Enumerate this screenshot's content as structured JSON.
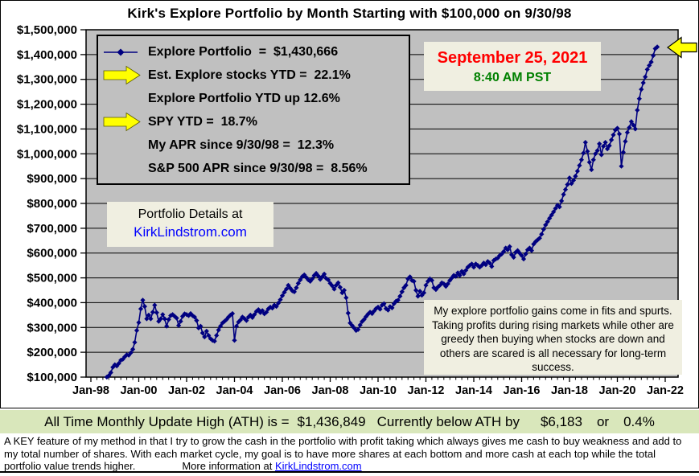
{
  "title": "Kirk's Explore Portfolio by Month Starting with $100,000 on 9/30/98",
  "colors": {
    "line": "#000080",
    "plot_bg": "#C0C0C0",
    "legend_bg": "#C0C0C0",
    "box_bg": "#F0EFE1",
    "ath_bg": "#D9E7BB",
    "date_red": "#FF0000",
    "time_green": "#008000",
    "link_blue": "#0000FF",
    "arrow_yellow": "#FFFF00"
  },
  "legend": {
    "items": [
      {
        "label": "Explore Portfolio  =  $1,430,666",
        "marker": "line-diamond",
        "arrow": false
      },
      {
        "label": "Est. Explore stocks YTD =  22.1%",
        "marker": null,
        "arrow": true
      },
      {
        "label": "Explore Portfolio YTD up 12.6%",
        "marker": null,
        "arrow": false
      },
      {
        "label": "SPY YTD =  18.7%",
        "marker": null,
        "arrow": true
      },
      {
        "label": "My APR since 9/30/98 =  12.3%",
        "marker": null,
        "arrow": false
      },
      {
        "label": "S&P 500 APR since 9/30/98 =  8.56%",
        "marker": null,
        "arrow": false
      }
    ]
  },
  "datetime_box": {
    "date": "September 25, 2021",
    "time": "8:40 AM PST"
  },
  "details_box": {
    "line1": "Portfolio Details at",
    "link": "KirkLindstrom.com"
  },
  "annotation_box": {
    "text": "My explore portfolio gains come in fits and spurts. Taking profits during rising markets while other are greedy then buying when stocks are down and others are scared is all necessary for long-term success."
  },
  "ath_bar": {
    "label": "All Time Monthly Update High (ATH) is =",
    "ath_value": "$1,436,849",
    "middle": "Currently below ATH by",
    "below_amount": "$6,183",
    "or_label": "or",
    "below_pct": "0.4%"
  },
  "footer": {
    "body": " A KEY feature of my method in that I try to grow the cash in the portfolio with profit taking which always gives me cash to buy weakness and add to my total number of shares.  With each market cycle, my goal is to have more shares at each bottom and more cash at each top while the total portfolio value trends higher.",
    "more_label": "More information at ",
    "link": "KirkLindstrom.com"
  },
  "chart_data": {
    "type": "line",
    "title": "Kirk's Explore Portfolio by Month Starting with $100,000 on 9/30/98",
    "xlabel": "",
    "ylabel": "",
    "ylim": [
      100000,
      1500000
    ],
    "y_tick_step": 100000,
    "y_tick_format": "$#,##0",
    "x_ticks": [
      "Jan-98",
      "Jan-00",
      "Jan-02",
      "Jan-04",
      "Jan-06",
      "Jan-08",
      "Jan-10",
      "Jan-12",
      "Jan-14",
      "Jan-16",
      "Jan-18",
      "Jan-20",
      "Jan-22"
    ],
    "x_axis_years": [
      1998,
      2022
    ],
    "grid": true,
    "legend_position": "top-left",
    "plot_bg": "#C0C0C0",
    "series": [
      {
        "name": "Explore Portfolio",
        "color": "#000080",
        "marker": "diamond",
        "frequency": "monthly",
        "start": "1998-09",
        "end": "2021-09",
        "final_value": 1430666,
        "values": [
          100000,
          106000,
          118000,
          140000,
          150000,
          145000,
          155000,
          168000,
          172000,
          182000,
          190000,
          188000,
          198000,
          212000,
          240000,
          288000,
          320000,
          375000,
          410000,
          385000,
          335000,
          350000,
          335000,
          362000,
          390000,
          360000,
          325000,
          335000,
          352000,
          335000,
          305000,
          332000,
          348000,
          352000,
          345000,
          338000,
          308000,
          325000,
          345000,
          355000,
          352000,
          348000,
          356000,
          348000,
          342000,
          328000,
          298000,
          305000,
          278000,
          262000,
          285000,
          268000,
          255000,
          248000,
          245000,
          268000,
          290000,
          305000,
          318000,
          325000,
          332000,
          342000,
          350000,
          356000,
          248000,
          305000,
          322000,
          330000,
          342000,
          336000,
          328000,
          342000,
          350000,
          340000,
          352000,
          365000,
          372000,
          360000,
          368000,
          355000,
          362000,
          375000,
          382000,
          378000,
          390000,
          385000,
          398000,
          412000,
          428000,
          442000,
          455000,
          470000,
          458000,
          448000,
          444000,
          460000,
          478000,
          492000,
          505000,
          512000,
          502000,
          492000,
          486000,
          496000,
          510000,
          518000,
          508000,
          494000,
          504000,
          515000,
          498000,
          492000,
          478000,
          468000,
          455000,
          470000,
          480000,
          462000,
          440000,
          450000,
          420000,
          358000,
          318000,
          308000,
          298000,
          288000,
          292000,
          310000,
          324000,
          332000,
          344000,
          354000,
          362000,
          356000,
          366000,
          376000,
          382000,
          374000,
          390000,
          396000,
          376000,
          370000,
          384000,
          379000,
          396000,
          406000,
          410000,
          426000,
          444000,
          460000,
          470000,
          496000,
          504000,
          490000,
          486000,
          450000,
          426000,
          446000,
          430000,
          440000,
          470000,
          486000,
          496000,
          490000,
          460000,
          453000,
          463000,
          470000,
          480000,
          476000,
          466000,
          476000,
          490000,
          500000,
          510000,
          506000,
          520000,
          510000,
          526000,
          516000,
          530000,
          543000,
          550000,
          556000,
          543000,
          556000,
          550000,
          543000,
          550000,
          560000,
          553000,
          566000,
          560000,
          546000,
          570000,
          576000,
          580000,
          590000,
          596000,
          606000,
          620000,
          613000,
          626000,
          593000,
          583000,
          603000,
          610000,
          600000,
          590000,
          576000,
          596000,
          613000,
          620000,
          610000,
          636000,
          646000,
          653000,
          660000,
          676000,
          696000,
          713000,
          726000,
          740000,
          753000,
          766000,
          780000,
          793000,
          786000,
          810000,
          836000,
          856000,
          876000,
          903000,
          880000,
          893000,
          910000,
          930000,
          953000,
          976000,
          1003000,
          1046000,
          1010000,
          966000,
          936000,
          976000,
          1000000,
          1013000,
          1040000,
          996000,
          1030000,
          1046000,
          1020000,
          1033000,
          1056000,
          1076000,
          1096000,
          1103000,
          1080000,
          950000,
          1006000,
          1050000,
          1086000,
          1106000,
          1130000,
          1116000,
          1100000,
          1176000,
          1222000,
          1260000,
          1286000,
          1310000,
          1340000,
          1356000,
          1370000,
          1396000,
          1424000,
          1430666
        ]
      }
    ]
  }
}
